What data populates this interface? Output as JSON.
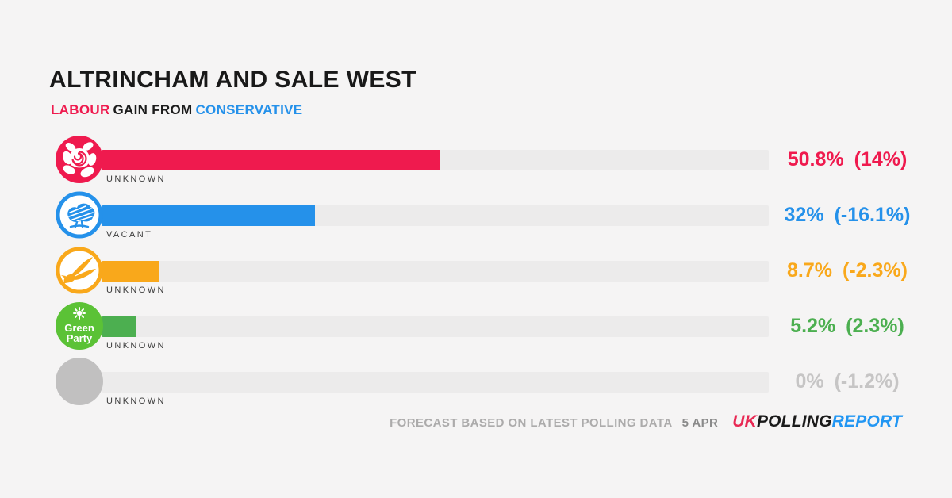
{
  "header": {
    "title": "ALTRINCHAM AND SALE WEST",
    "subtitle_party_from": "LABOUR",
    "subtitle_middle": "GAIN FROM",
    "subtitle_party_to": "CONSERVATIVE",
    "subtitle_party_from_color": "#EF1A4E",
    "subtitle_middle_color": "#1c1c1c",
    "subtitle_party_to_color": "#2591EA"
  },
  "chart_data": {
    "type": "bar",
    "orientation": "horizontal",
    "title": "ALTRINCHAM AND SALE WEST",
    "subtitle": "LABOUR GAIN FROM CONSERVATIVE",
    "categories": [
      "Labour",
      "Conservative",
      "Liberal Democrats",
      "Green Party",
      "Other / Unknown"
    ],
    "values": [
      50.8,
      32,
      8.7,
      5.2,
      0
    ],
    "changes": [
      14,
      -16.1,
      -2.3,
      2.3,
      -1.2
    ],
    "candidates": [
      "UNKNOWN",
      "VACANT",
      "UNKNOWN",
      "UNKNOWN",
      "UNKNOWN"
    ],
    "xlim": [
      0,
      100
    ],
    "grid": false,
    "legend": false,
    "note": "FORECAST BASED ON LATEST POLLING DATA",
    "date": "5 APR"
  },
  "rows": [
    {
      "party": "Labour",
      "icon": "labour-rose-icon",
      "candidate": "UNKNOWN",
      "value": 50.8,
      "value_label": "50.8%",
      "change_label": "(14%)",
      "color": "#EF1A4E",
      "icon_color": "#EF1A4E"
    },
    {
      "party": "Conservative",
      "icon": "conservative-tree-icon",
      "candidate": "VACANT",
      "value": 32,
      "value_label": "32%",
      "change_label": "(-16.1%)",
      "color": "#2591EA",
      "icon_color": "#2591EA"
    },
    {
      "party": "Liberal Democrats",
      "icon": "libdem-bird-icon",
      "candidate": "UNKNOWN",
      "value": 8.7,
      "value_label": "8.7%",
      "change_label": "(-2.3%)",
      "color": "#F9A81B",
      "icon_color": "#F9A81B"
    },
    {
      "party": "Green Party",
      "icon": "green-party-icon",
      "candidate": "UNKNOWN",
      "value": 5.2,
      "value_label": "5.2%",
      "change_label": "(2.3%)",
      "color": "#4CAF50",
      "icon_color": "#5BC236",
      "icon_text_line1": "Green",
      "icon_text_line2": "Party"
    },
    {
      "party": "Other",
      "icon": "unknown-party-icon",
      "candidate": "UNKNOWN",
      "value": 0,
      "value_label": "0%",
      "change_label": "(-1.2%)",
      "color": "#C6C5C5",
      "icon_color": "#C1C0C0"
    }
  ],
  "footer": {
    "note": "FORECAST BASED ON LATEST POLLING DATA",
    "date": "5 APR",
    "logo": [
      {
        "text": "UK",
        "color": "#E82853"
      },
      {
        "text": "POLLING",
        "color": "#1A1A1A"
      },
      {
        "text": "REPORT",
        "color": "#2196F3"
      }
    ]
  }
}
